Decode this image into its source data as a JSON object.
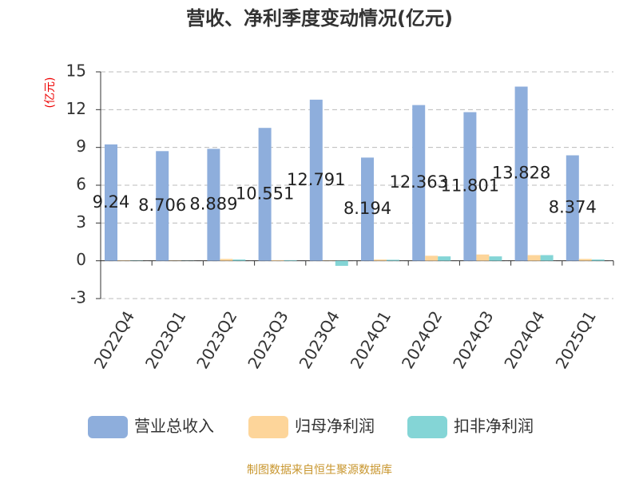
{
  "chart_data": {
    "type": "bar",
    "title": "营收、净利季度变动情况(亿元)",
    "y_label": "(亿元)",
    "source": "制图数据来自恒生聚源数据库",
    "categories": [
      "2022Q4",
      "2023Q1",
      "2023Q2",
      "2023Q3",
      "2023Q4",
      "2024Q1",
      "2024Q2",
      "2024Q3",
      "2024Q4",
      "2025Q1"
    ],
    "series": [
      {
        "name": "营业总收入",
        "color": "#8eaedc",
        "values": [
          9.24,
          8.706,
          8.889,
          10.551,
          12.791,
          8.194,
          12.363,
          11.801,
          13.828,
          8.374
        ]
      },
      {
        "name": "归母净利润",
        "color": "#fdd59a",
        "values": [
          0.03,
          0.02,
          0.15,
          0.05,
          0.02,
          0.1,
          0.4,
          0.5,
          0.45,
          0.15
        ]
      },
      {
        "name": "扣非净利润",
        "color": "#84d5d6",
        "values": [
          0.02,
          0.01,
          0.1,
          0.05,
          -0.4,
          0.08,
          0.35,
          0.35,
          0.45,
          0.1
        ]
      }
    ],
    "ylim": [
      -3,
      15
    ],
    "yticks": [
      -3,
      0,
      3,
      6,
      9,
      12,
      15
    ],
    "grid": true,
    "legend": "bottom"
  }
}
